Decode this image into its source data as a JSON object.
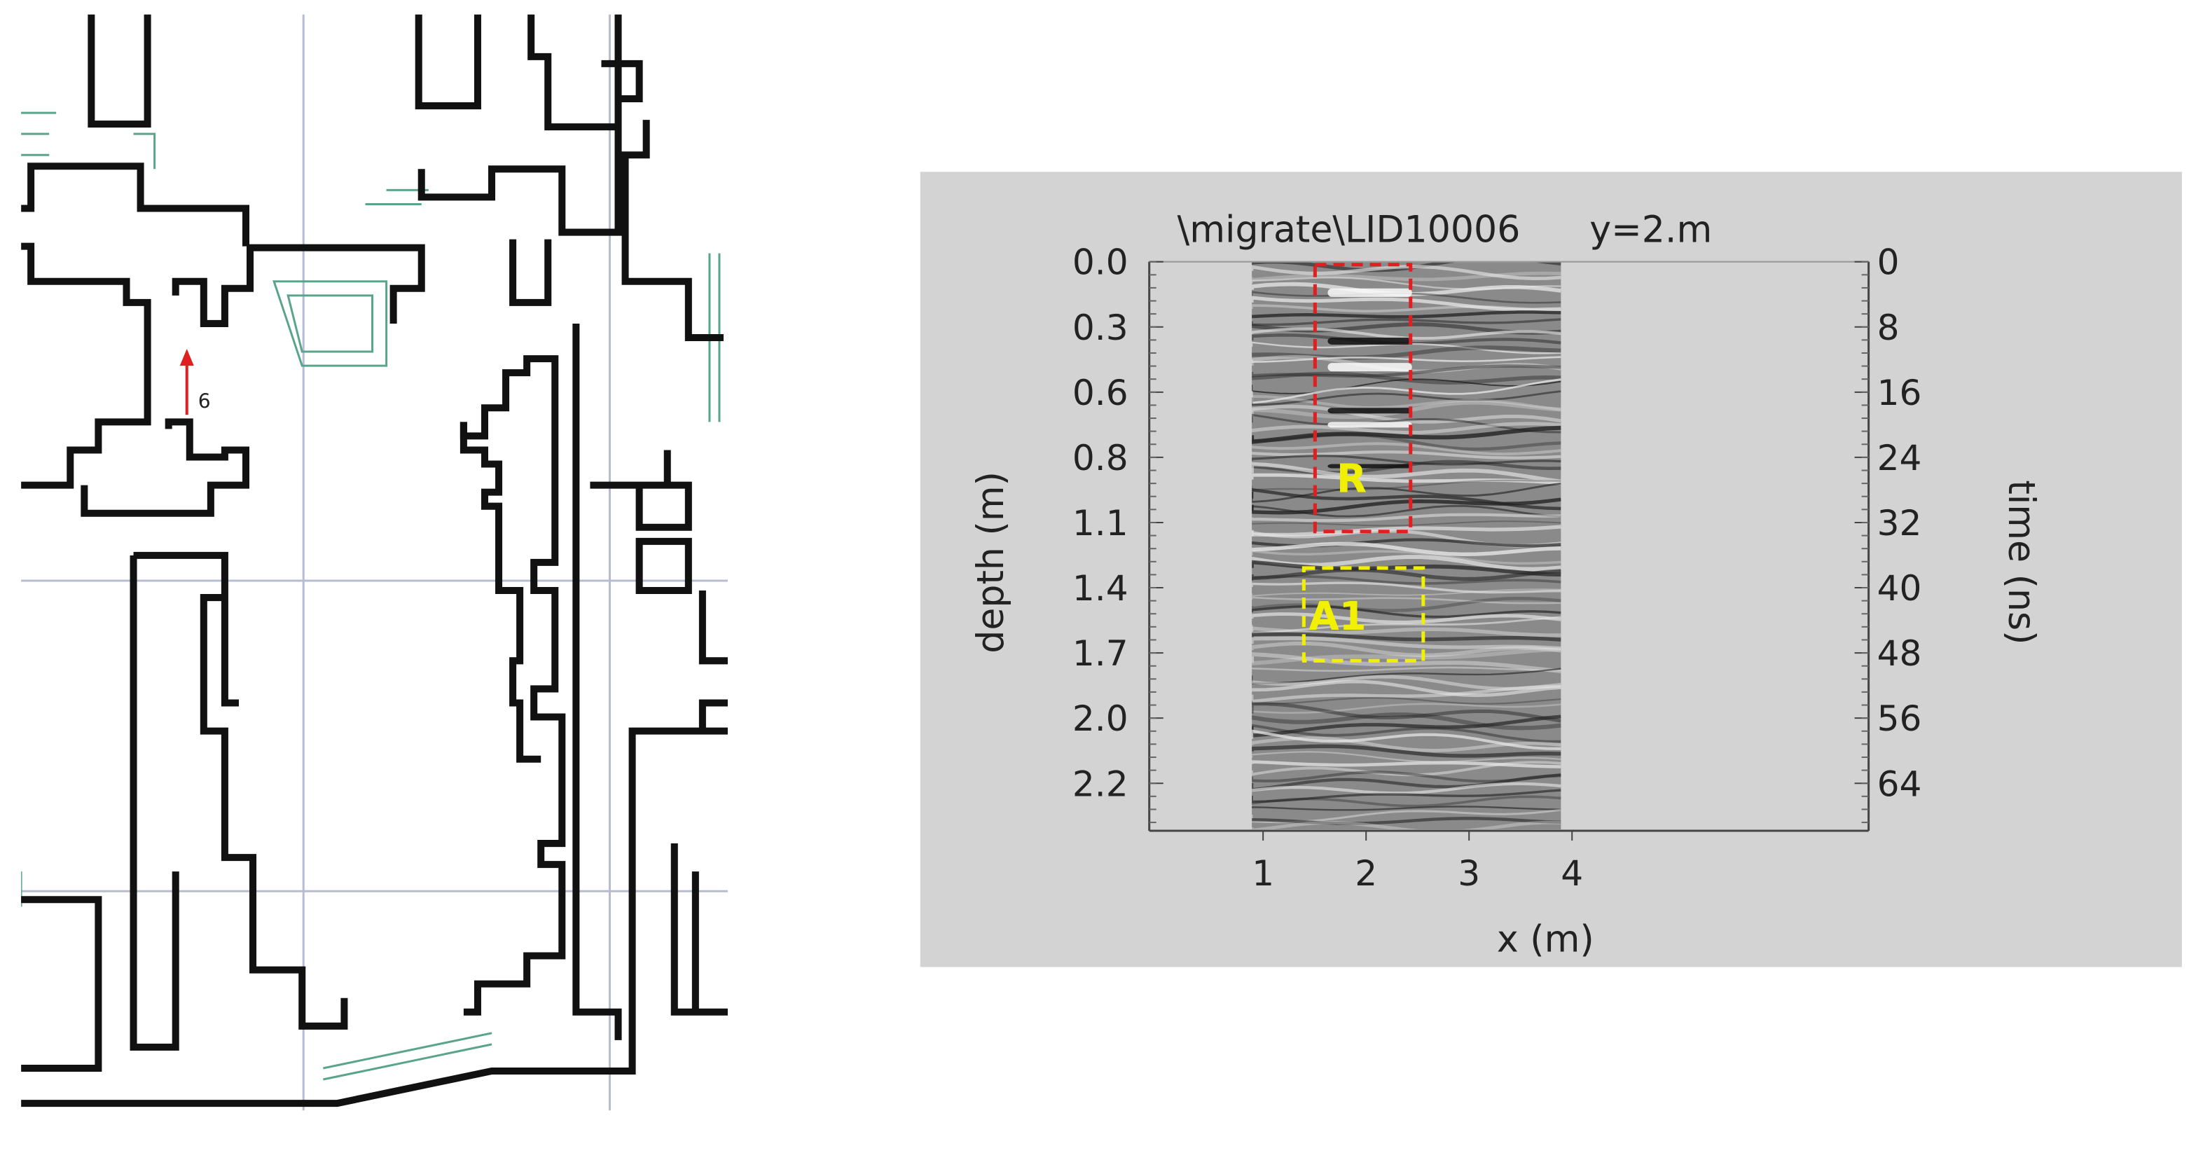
{
  "plan": {
    "arrow_label": "6"
  },
  "radargram": {
    "title": "\\migrate\\LID10006",
    "subtitle": "y=2.m",
    "y_label": "depth (m)",
    "y2_label": "time (ns)",
    "x_label": "x (m)",
    "depth_ticks": [
      "0.0",
      "0.3",
      "0.6",
      "0.8",
      "1.1",
      "1.4",
      "1.7",
      "2.0",
      "2.2"
    ],
    "time_ticks": [
      "0",
      "8",
      "16",
      "24",
      "32",
      "40",
      "48",
      "56",
      "64"
    ],
    "x_ticks": [
      "1",
      "2",
      "3",
      "4"
    ],
    "boxes": [
      {
        "label": "R"
      },
      {
        "label": "A1"
      }
    ]
  }
}
